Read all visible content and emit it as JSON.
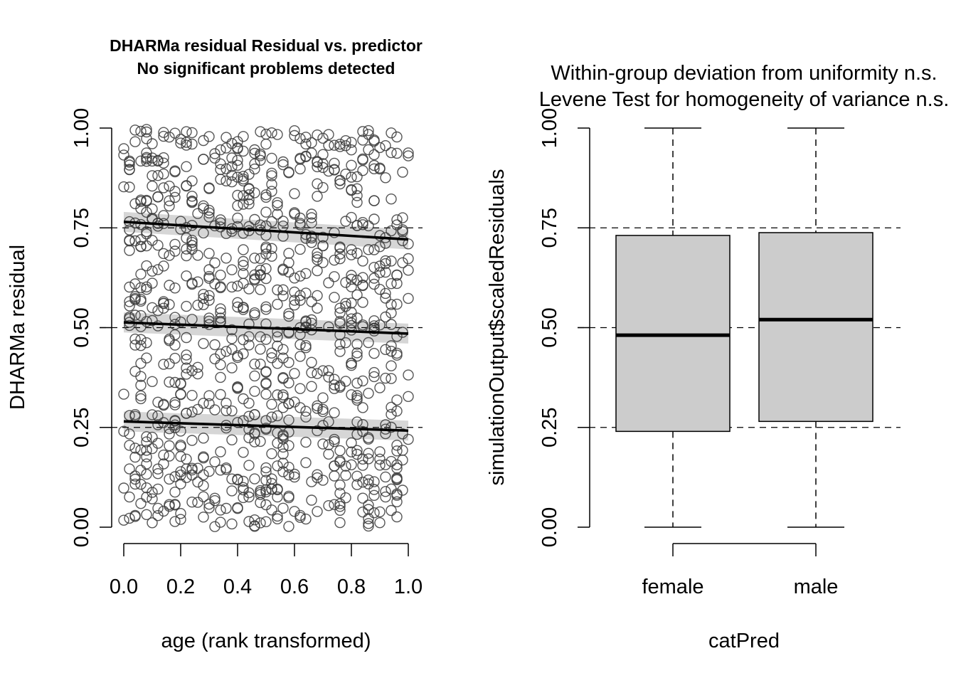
{
  "chart_data": [
    {
      "type": "scatter",
      "title": "DHARMa residual Residual vs. predictor",
      "subtitle": "No significant problems detected",
      "xlabel": "age (rank transformed)",
      "ylabel": "DHARMa residual",
      "xlim": [
        0,
        1
      ],
      "ylim": [
        0,
        1
      ],
      "x_ticks": [
        "0.0",
        "0.2",
        "0.4",
        "0.6",
        "0.8",
        "1.0"
      ],
      "y_ticks": [
        "0.00",
        "0.25",
        "0.50",
        "0.75",
        "1.00"
      ],
      "reference_lines": [
        0.25,
        0.5,
        0.75
      ],
      "n_points": 1000,
      "point_seed": 20240611,
      "quantile_lines": [
        {
          "quantile": 0.25,
          "start": [
            0,
            0.265
          ],
          "end": [
            1,
            0.242
          ]
        },
        {
          "quantile": 0.5,
          "start": [
            0,
            0.513
          ],
          "end": [
            1,
            0.485
          ]
        },
        {
          "quantile": 0.75,
          "start": [
            0,
            0.765
          ],
          "end": [
            1,
            0.721
          ]
        }
      ],
      "colors": {
        "points": "#3a3a3a",
        "lines": "#000000",
        "band": "#c8c8c8",
        "reference": "#000000"
      }
    },
    {
      "type": "box",
      "title": "Within-group deviation from uniformity n.s.",
      "subtitle": "Levene Test for homogeneity of variance n.s.",
      "xlabel": "catPred",
      "ylabel": "simulationOutput$scaledResiduals",
      "ylim": [
        0,
        1
      ],
      "y_ticks": [
        "0.00",
        "0.25",
        "0.50",
        "0.75",
        "1.00"
      ],
      "reference_lines": [
        0.25,
        0.5,
        0.75
      ],
      "categories": [
        "female",
        "male"
      ],
      "boxes": [
        {
          "name": "female",
          "min": 0.0,
          "q1": 0.24,
          "median": 0.481,
          "q3": 0.731,
          "max": 1.0
        },
        {
          "name": "male",
          "min": 0.0,
          "q1": 0.265,
          "median": 0.52,
          "q3": 0.738,
          "max": 1.0
        }
      ],
      "colors": {
        "box_fill": "#cccccc",
        "box_border": "#000000"
      }
    }
  ]
}
